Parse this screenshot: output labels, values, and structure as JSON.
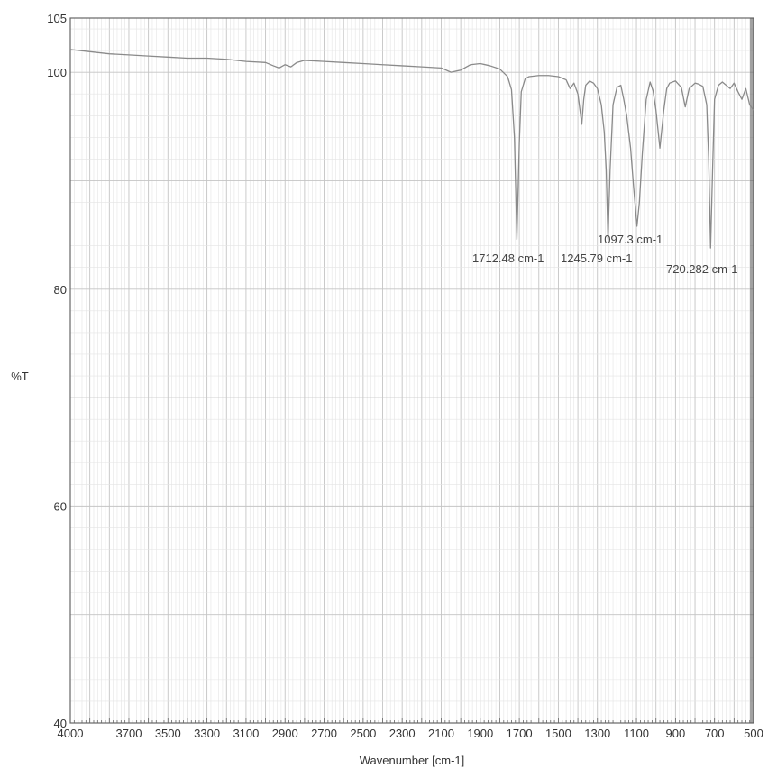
{
  "chart_data": {
    "type": "line",
    "title": "",
    "xlabel": "Wavenumber [cm-1]",
    "ylabel": "%T",
    "xlim": [
      4000,
      500
    ],
    "x_reversed": true,
    "ylim": [
      40,
      105
    ],
    "grid": true,
    "x_ticks": [
      4000,
      3700,
      3500,
      3300,
      3100,
      2900,
      2700,
      2500,
      2300,
      2100,
      1900,
      1700,
      1500,
      1300,
      1100,
      900,
      700,
      500
    ],
    "y_ticks": [
      40,
      60,
      80,
      100,
      105
    ],
    "series": [
      {
        "x": [
          4000,
          3900,
          3800,
          3700,
          3600,
          3500,
          3400,
          3300,
          3200,
          3100,
          3000,
          2960,
          2930,
          2900,
          2870,
          2840,
          2800,
          2700,
          2600,
          2500,
          2400,
          2300,
          2200,
          2100,
          2050,
          2000,
          1950,
          1900,
          1850,
          1800,
          1760,
          1740,
          1725,
          1712.48,
          1700,
          1690,
          1670,
          1650,
          1600,
          1550,
          1500,
          1460,
          1440,
          1420,
          1400,
          1380,
          1370,
          1360,
          1340,
          1320,
          1300,
          1280,
          1265,
          1255,
          1245.79,
          1235,
          1220,
          1200,
          1180,
          1165,
          1150,
          1130,
          1115,
          1097.3,
          1085,
          1070,
          1050,
          1030,
          1015,
          1000,
          980,
          960,
          945,
          930,
          900,
          870,
          850,
          830,
          800,
          780,
          760,
          740,
          730,
          720.282,
          710,
          700,
          680,
          660,
          640,
          620,
          600,
          580,
          560,
          540,
          520,
          500
        ],
        "y": [
          102.1,
          101.9,
          101.7,
          101.6,
          101.5,
          101.4,
          101.3,
          101.3,
          101.2,
          101.0,
          100.9,
          100.6,
          100.4,
          100.7,
          100.5,
          100.9,
          101.1,
          101.0,
          100.9,
          100.8,
          100.7,
          100.6,
          100.5,
          100.4,
          100.0,
          100.2,
          100.7,
          100.8,
          100.6,
          100.3,
          99.6,
          98.4,
          94.0,
          84.6,
          93.5,
          98.2,
          99.4,
          99.6,
          99.7,
          99.7,
          99.6,
          99.3,
          98.5,
          99.0,
          98.0,
          95.2,
          97.5,
          98.8,
          99.2,
          99.0,
          98.5,
          97.0,
          94.5,
          91.0,
          84.6,
          91.0,
          97.0,
          98.6,
          98.8,
          97.5,
          96.0,
          93.0,
          89.5,
          85.8,
          88.0,
          92.5,
          97.5,
          99.1,
          98.3,
          96.5,
          93.0,
          96.5,
          98.5,
          99.0,
          99.2,
          98.6,
          96.8,
          98.5,
          99.0,
          98.9,
          98.7,
          97.0,
          92.0,
          83.8,
          91.0,
          97.5,
          98.8,
          99.1,
          98.8,
          98.5,
          99.0,
          98.2,
          97.5,
          98.5,
          97.0,
          96.5
        ]
      }
    ],
    "annotations": [
      {
        "text": "1712.48 cm-1",
        "x": 1712.48,
        "y": 84.6
      },
      {
        "text": "1245.79 cm-1",
        "x": 1245.79,
        "y": 84.6
      },
      {
        "text": "1097.3 cm-1",
        "x": 1097.3,
        "y": 85.8
      },
      {
        "text": "720.282 cm-1",
        "x": 720.282,
        "y": 83.8
      }
    ],
    "colors": {
      "line": "#8a8a8a",
      "grid_major": "#c4c4c4",
      "grid_minor": "#e4e4e4",
      "axis": "#666666",
      "text": "#333333"
    }
  }
}
